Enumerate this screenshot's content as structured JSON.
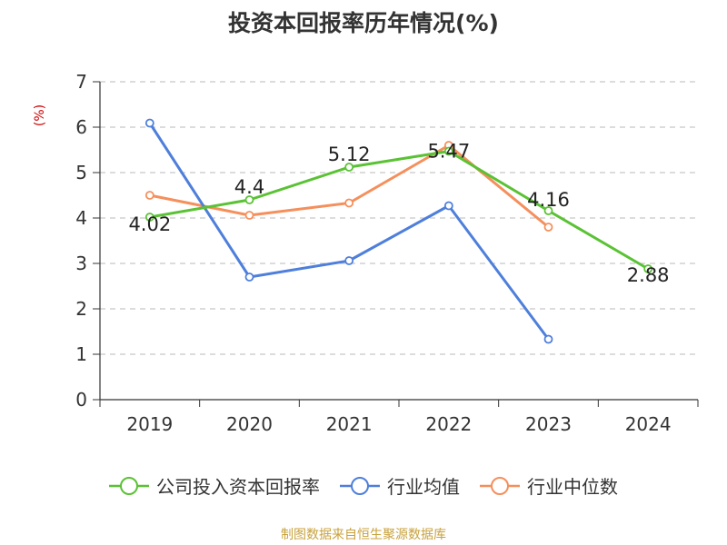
{
  "chart_data": {
    "type": "line",
    "title": "投资本回报率历年情况(%)",
    "ylabel": "(%)",
    "categories": [
      "2019",
      "2020",
      "2021",
      "2022",
      "2023",
      "2024"
    ],
    "ylim": [
      0,
      7
    ],
    "yticks": [
      "0",
      "1",
      "2",
      "3",
      "4",
      "5",
      "6",
      "7"
    ],
    "grid": true,
    "legend_position": "bottom",
    "series": [
      {
        "name": "公司投入资本回报率",
        "color": "#5ac234",
        "values": [
          4.02,
          4.4,
          5.12,
          5.47,
          4.16,
          2.88
        ],
        "labels": [
          "4.02",
          "4.4",
          "5.12",
          "5.47",
          "4.16",
          "2.88"
        ]
      },
      {
        "name": "行业均值",
        "color": "#4e7fdb",
        "values": [
          6.09,
          2.7,
          3.06,
          4.27,
          1.33,
          null
        ]
      },
      {
        "name": "行业中位数",
        "color": "#f58f5c",
        "values": [
          4.5,
          4.06,
          4.33,
          5.6,
          3.8,
          null
        ]
      }
    ]
  },
  "source": "制图数据来自恒生聚源数据库"
}
